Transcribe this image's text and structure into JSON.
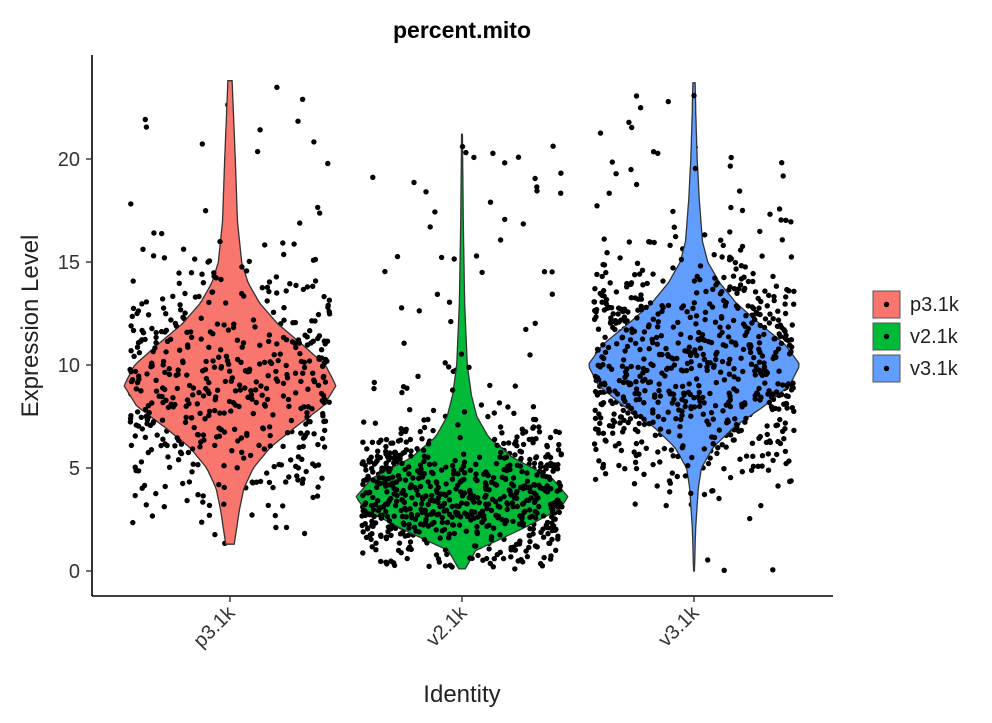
{
  "chart_data": {
    "type": "violin",
    "title": "percent.mito",
    "xlabel": "Identity",
    "ylabel": "Expression Level",
    "categories": [
      "p3.1k",
      "v2.1k",
      "v3.1k"
    ],
    "ylim": [
      -1,
      25
    ],
    "yticks": [
      0,
      5,
      10,
      15,
      20
    ],
    "grid": false,
    "legend": {
      "position": "right",
      "entries": [
        {
          "label": "p3.1k",
          "color": "#F8766D"
        },
        {
          "label": "v2.1k",
          "color": "#00BA38"
        },
        {
          "label": "v3.1k",
          "color": "#619CFF"
        }
      ]
    },
    "series": [
      {
        "group": "p3.1k",
        "color": "#F8766D",
        "min": 1.3,
        "max": 23.8,
        "median": 9.0,
        "density": [
          [
            1.3,
            0.04
          ],
          [
            3,
            0.09
          ],
          [
            4,
            0.13
          ],
          [
            5,
            0.22
          ],
          [
            6,
            0.38
          ],
          [
            7,
            0.62
          ],
          [
            8,
            0.88
          ],
          [
            9,
            1.0
          ],
          [
            10,
            0.9
          ],
          [
            11,
            0.68
          ],
          [
            12,
            0.45
          ],
          [
            13,
            0.28
          ],
          [
            14,
            0.17
          ],
          [
            15,
            0.11
          ],
          [
            17,
            0.07
          ],
          [
            20,
            0.05
          ],
          [
            23.8,
            0.02
          ]
        ]
      },
      {
        "group": "v2.1k",
        "color": "#00BA38",
        "min": 0.1,
        "max": 21.2,
        "median": 3.6,
        "density": [
          [
            0.1,
            0.03
          ],
          [
            1,
            0.13
          ],
          [
            2,
            0.55
          ],
          [
            3,
            0.92
          ],
          [
            3.6,
            1.0
          ],
          [
            4.5,
            0.85
          ],
          [
            5.5,
            0.48
          ],
          [
            6.5,
            0.25
          ],
          [
            7.5,
            0.14
          ],
          [
            8.5,
            0.09
          ],
          [
            10,
            0.05
          ],
          [
            13,
            0.025
          ],
          [
            17,
            0.012
          ],
          [
            21.2,
            0.004
          ]
        ]
      },
      {
        "group": "v3.1k",
        "color": "#619CFF",
        "min": 0.0,
        "max": 23.7,
        "median": 9.8,
        "density": [
          [
            0,
            0.004
          ],
          [
            2,
            0.015
          ],
          [
            4,
            0.04
          ],
          [
            5,
            0.07
          ],
          [
            6,
            0.18
          ],
          [
            7,
            0.38
          ],
          [
            8,
            0.66
          ],
          [
            9,
            0.9
          ],
          [
            10,
            1.0
          ],
          [
            11,
            0.86
          ],
          [
            12,
            0.62
          ],
          [
            13,
            0.4
          ],
          [
            14,
            0.24
          ],
          [
            15,
            0.13
          ],
          [
            16,
            0.08
          ],
          [
            18,
            0.05
          ],
          [
            20,
            0.03
          ],
          [
            22,
            0.018
          ],
          [
            23.7,
            0.01
          ]
        ]
      }
    ]
  }
}
